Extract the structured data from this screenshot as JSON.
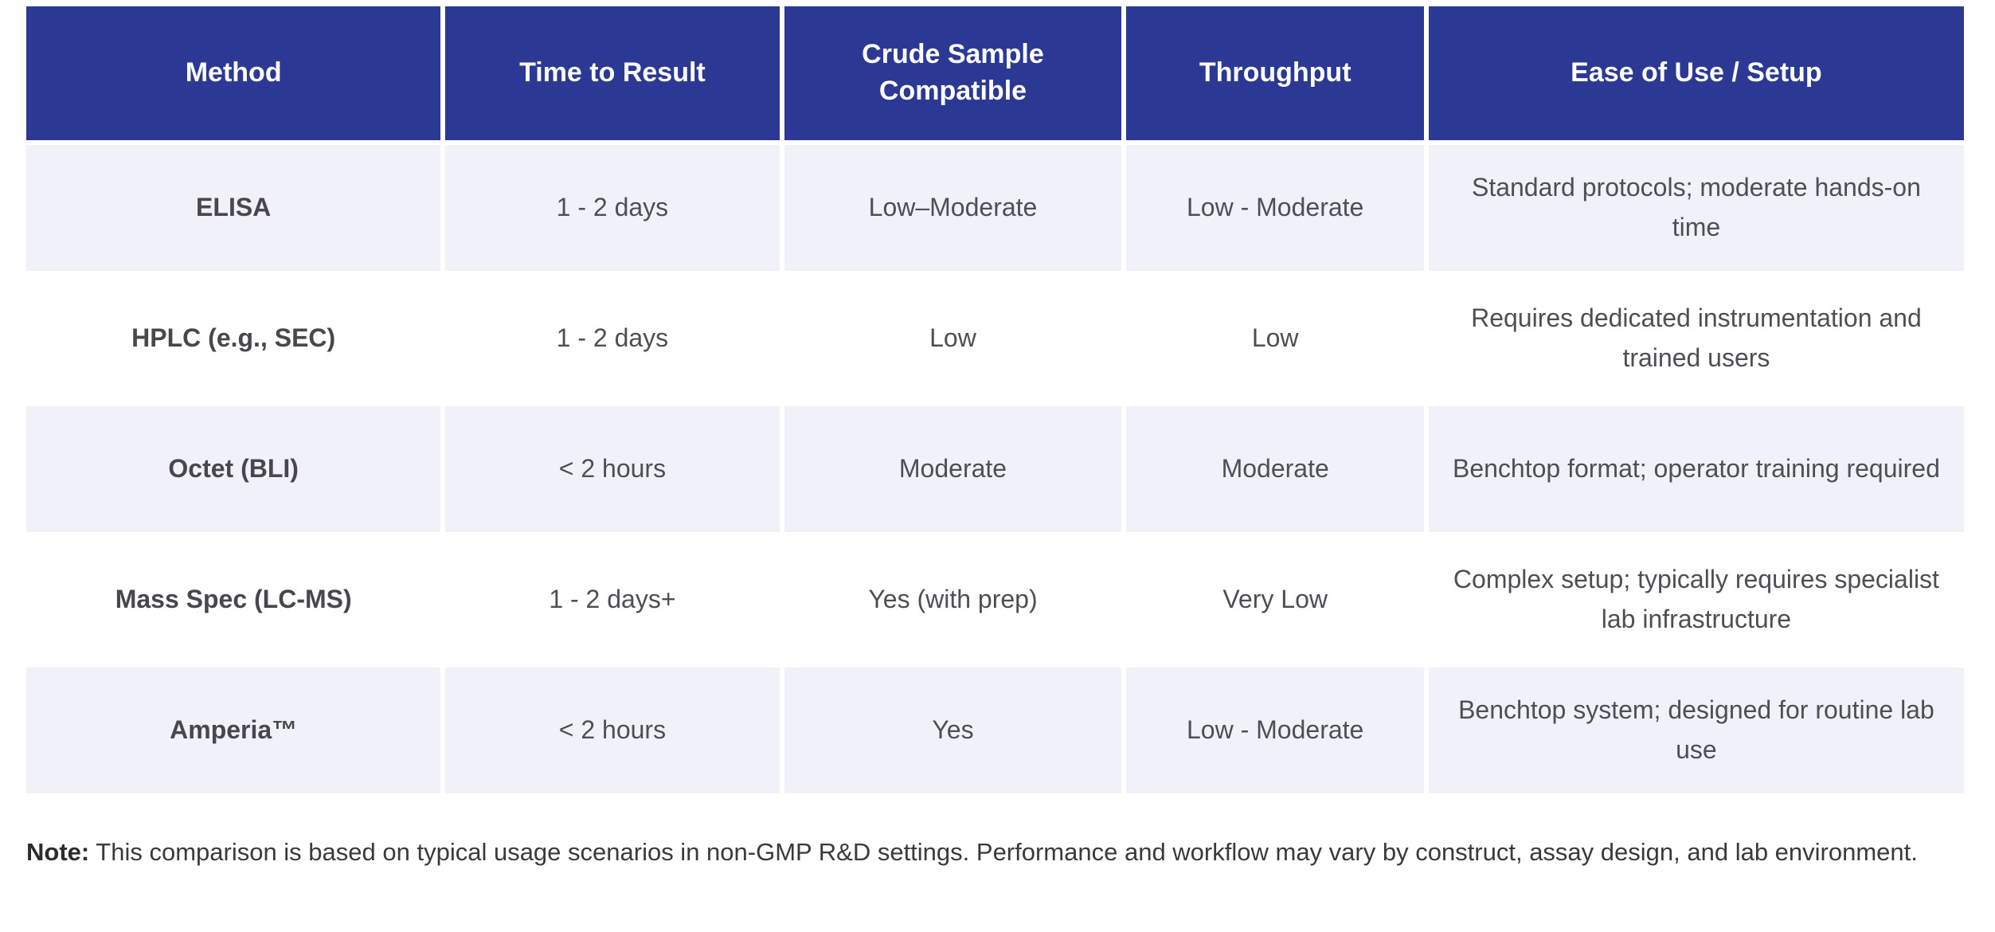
{
  "chart_data": {
    "type": "table",
    "title": "",
    "columns": [
      "Method",
      "Time to Result",
      "Crude Sample Compatible",
      "Throughput",
      "Ease of Use / Setup"
    ],
    "rows": [
      [
        "ELISA",
        "1 - 2 days",
        "Low–Moderate",
        "Low - Moderate",
        "Standard protocols; moderate hands-on time"
      ],
      [
        "HPLC (e.g., SEC)",
        "1 - 2 days",
        "Low",
        "Low",
        "Requires dedicated instrumentation and trained users"
      ],
      [
        "Octet (BLI)",
        "< 2 hours",
        "Moderate",
        "Moderate",
        "Benchtop format; operator training required"
      ],
      [
        "Mass Spec (LC-MS)",
        "1 - 2 days+",
        "Yes (with prep)",
        "Very Low",
        "Complex setup; typically requires specialist lab infrastructure"
      ],
      [
        "Amperia™",
        "< 2 hours",
        "Yes",
        "Low - Moderate",
        "Benchtop system; designed for routine lab use"
      ]
    ]
  },
  "table": {
    "columns": [
      {
        "label": "Method"
      },
      {
        "label": "Time to Result"
      },
      {
        "label": "Crude Sample Compatible"
      },
      {
        "label": "Throughput"
      },
      {
        "label": "Ease of Use / Setup"
      }
    ],
    "rows": [
      {
        "method": "ELISA",
        "time": "1 - 2 days",
        "crude": "Low–Moderate",
        "throughput": "Low - Moderate",
        "ease": "Standard protocols; moderate hands-on time"
      },
      {
        "method": "HPLC (e.g., SEC)",
        "time": "1 - 2 days",
        "crude": "Low",
        "throughput": "Low",
        "ease": "Requires dedicated instrumentation and trained users"
      },
      {
        "method": "Octet (BLI)",
        "time": "< 2 hours",
        "crude": "Moderate",
        "throughput": "Moderate",
        "ease": "Benchtop format; operator training required"
      },
      {
        "method": "Mass Spec (LC-MS)",
        "time": "1 - 2 days+",
        "crude": "Yes (with prep)",
        "throughput": "Very Low",
        "ease": "Complex setup; typically requires specialist lab infrastructure"
      },
      {
        "method": "Amperia™",
        "time": "< 2 hours",
        "crude": "Yes",
        "throughput": "Low - Moderate",
        "ease": "Benchtop system; designed for routine lab use"
      }
    ]
  },
  "note": {
    "label": "Note:",
    "text": " This comparison is based on typical usage scenarios in non-GMP R&D settings. Performance and workflow may vary by construct, assay design, and lab environment."
  },
  "colors": {
    "header_bg": "#2b3894",
    "header_text": "#ffffff",
    "row_alt_bg": "#f1f1fa",
    "row_bg": "#ffffff",
    "body_text": "#4e4e55"
  }
}
